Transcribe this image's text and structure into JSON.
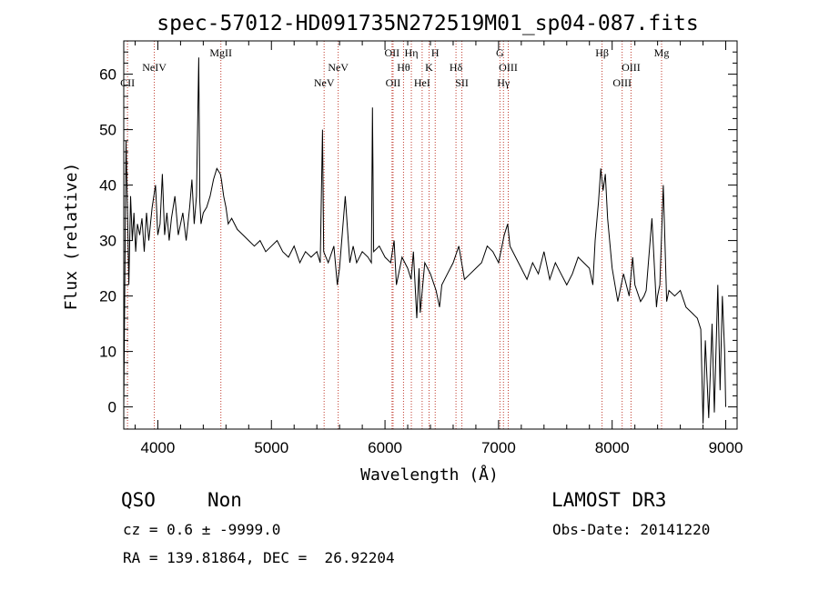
{
  "chart_data": {
    "type": "line",
    "title": "spec-57012-HD091735N272519M01_sp04-087.fits",
    "xlabel": "Wavelength (Å)",
    "ylabel": "Flux (relative)",
    "xlim": [
      3700,
      9100
    ],
    "ylim": [
      -4,
      66
    ],
    "xticks": [
      4000,
      5000,
      6000,
      7000,
      8000,
      9000
    ],
    "yticks": [
      0,
      10,
      20,
      30,
      40,
      50,
      60
    ],
    "line_color": "#000000",
    "marker_color": "#c0392b",
    "spectrum": {
      "x": [
        3700,
        3720,
        3735,
        3745,
        3760,
        3775,
        3790,
        3805,
        3820,
        3840,
        3860,
        3880,
        3900,
        3920,
        3950,
        3980,
        4000,
        4020,
        4040,
        4060,
        4080,
        4100,
        4120,
        4150,
        4180,
        4200,
        4220,
        4250,
        4280,
        4300,
        4320,
        4340,
        4360,
        4370,
        4380,
        4400,
        4430,
        4460,
        4490,
        4520,
        4550,
        4560,
        4580,
        4600,
        4620,
        4650,
        4700,
        4750,
        4800,
        4850,
        4900,
        4950,
        5000,
        5050,
        5100,
        5150,
        5200,
        5250,
        5300,
        5350,
        5400,
        5430,
        5450,
        5460,
        5480,
        5500,
        5550,
        5580,
        5600,
        5650,
        5690,
        5700,
        5720,
        5750,
        5800,
        5850,
        5880,
        5890,
        5900,
        5950,
        6000,
        6050,
        6080,
        6100,
        6150,
        6200,
        6230,
        6250,
        6280,
        6300,
        6310,
        6350,
        6400,
        6450,
        6480,
        6500,
        6550,
        6600,
        6650,
        6700,
        6750,
        6800,
        6850,
        6900,
        6950,
        7000,
        7050,
        7080,
        7100,
        7150,
        7200,
        7250,
        7300,
        7350,
        7400,
        7450,
        7500,
        7550,
        7600,
        7650,
        7700,
        7750,
        7800,
        7830,
        7850,
        7880,
        7900,
        7920,
        7940,
        7960,
        8000,
        8050,
        8100,
        8150,
        8180,
        8200,
        8250,
        8280,
        8300,
        8350,
        8390,
        8400,
        8420,
        8450,
        8480,
        8500,
        8550,
        8600,
        8650,
        8700,
        8750,
        8780,
        8800,
        8820,
        8850,
        8880,
        8900,
        8930,
        8950,
        8970,
        8990,
        9000
      ],
      "y": [
        0,
        48,
        33,
        22,
        38,
        30,
        35,
        28,
        33,
        31,
        34,
        28,
        35,
        30,
        36,
        40,
        31,
        33,
        42,
        31,
        35,
        30,
        34,
        38,
        31,
        33,
        35,
        30,
        36,
        41,
        33,
        38,
        63,
        37,
        33,
        35,
        36,
        38,
        41,
        43,
        42,
        41,
        38,
        36,
        33,
        34,
        32,
        31,
        30,
        29,
        30,
        28,
        29,
        30,
        28,
        27,
        29,
        26,
        28,
        27,
        28,
        26,
        50,
        28,
        27,
        26,
        29,
        22,
        25,
        38,
        26,
        27,
        29,
        26,
        28,
        27,
        26,
        54,
        28,
        29,
        27,
        26,
        30,
        22,
        27,
        25,
        23,
        28,
        16,
        25,
        17,
        26,
        24,
        21,
        18,
        22,
        24,
        26,
        29,
        23,
        24,
        25,
        26,
        29,
        28,
        26,
        31,
        33,
        29,
        27,
        25,
        23,
        26,
        24,
        28,
        23,
        26,
        24,
        22,
        24,
        27,
        26,
        25,
        22,
        30,
        37,
        43,
        39,
        42,
        34,
        25,
        19,
        24,
        20,
        27,
        22,
        19,
        20,
        21,
        34,
        18,
        20,
        22,
        40,
        19,
        21,
        20,
        21,
        18,
        17,
        16,
        14,
        -3,
        12,
        -2,
        15,
        -1,
        22,
        3,
        20,
        10,
        0
      ]
    },
    "lines": [
      {
        "name": "CII",
        "x": 3733,
        "row": 3
      },
      {
        "name": "NeIV",
        "x": 3969,
        "row": 2
      },
      {
        "name": "MgII",
        "x": 4555,
        "row": 1
      },
      {
        "name": "NeV",
        "x": 5464,
        "row": 3
      },
      {
        "name": "NeV",
        "x": 5588,
        "row": 2
      },
      {
        "name": "OII",
        "x": 6062,
        "row": 1
      },
      {
        "name": "OII",
        "x": 6071,
        "row": 3
      },
      {
        "name": "Hθ",
        "x": 6163,
        "row": 2
      },
      {
        "name": "Hη",
        "x": 6232,
        "row": 1
      },
      {
        "name": "HeI",
        "x": 6327,
        "row": 3
      },
      {
        "name": "K",
        "x": 6388,
        "row": 2
      },
      {
        "name": "H",
        "x": 6442,
        "row": 1
      },
      {
        "name": "Hδ",
        "x": 6625,
        "row": 2
      },
      {
        "name": "SII",
        "x": 6677,
        "row": 3
      },
      {
        "name": "G",
        "x": 7012,
        "row": 1
      },
      {
        "name": "OIII",
        "x": 7085,
        "row": 2
      },
      {
        "name": "Hγ",
        "x": 7043,
        "row": 3
      },
      {
        "name": "Hβ",
        "x": 7911,
        "row": 1
      },
      {
        "name": "OIII",
        "x": 8088,
        "row": 3
      },
      {
        "name": "OIII",
        "x": 8166,
        "row": 2
      },
      {
        "name": "Mg",
        "x": 8435,
        "row": 1
      }
    ]
  },
  "info": {
    "class": "QSO",
    "subclass": "Non",
    "survey": "LAMOST DR3",
    "cz": "cz = 0.6 ± -9999.0",
    "obs_date": "Obs-Date: 20141220",
    "radec": "RA = 139.81864, DEC =  26.92204"
  }
}
